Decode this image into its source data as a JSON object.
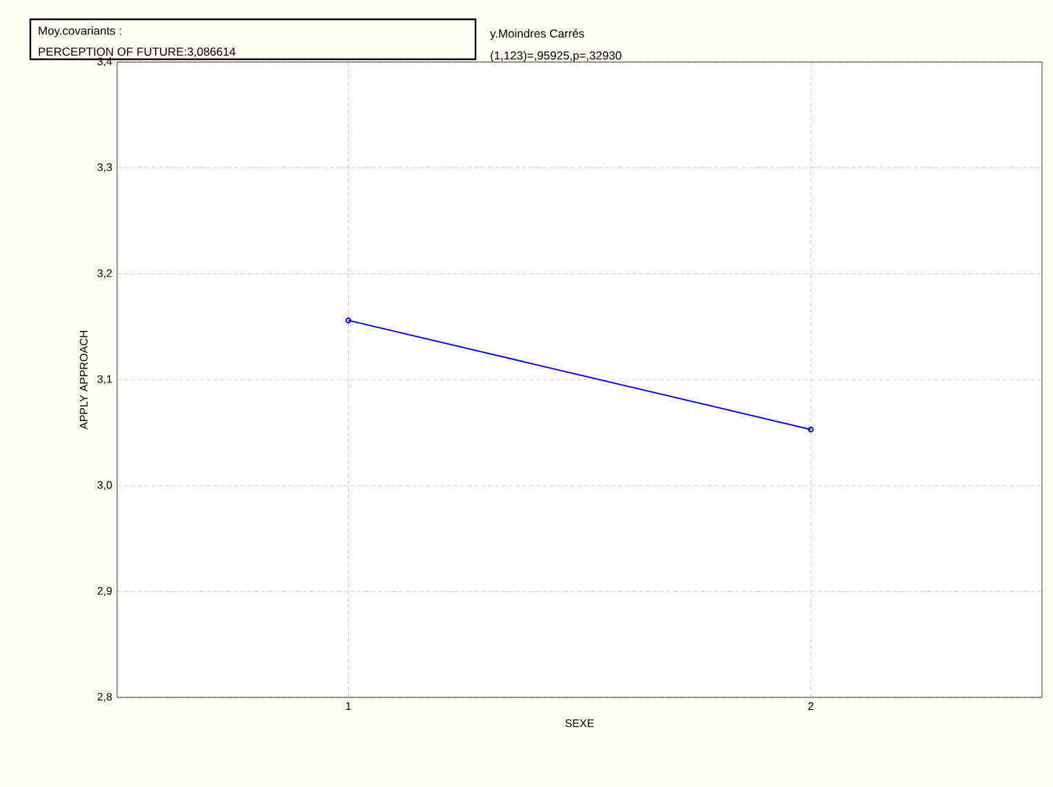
{
  "chart_data": {
    "type": "line",
    "title": "y.Moindres Carrés",
    "subtitle": "(1,123)=,95925,p=,32930",
    "annotations": [
      "Moy.covariants :",
      "PERCEPTION OF FUTURE:3,086614"
    ],
    "xlabel": "SEXE",
    "ylabel": "APPLY APPROACH",
    "x": [
      1,
      2
    ],
    "series": [
      {
        "color": "#0000ff",
        "values": [
          3.156,
          3.053
        ]
      }
    ],
    "xlim": [
      0.5,
      2.5
    ],
    "xticks": [
      1,
      2
    ],
    "ylim": [
      2.8,
      3.4
    ],
    "yticks": [
      {
        "value": 2.8,
        "label": "2,8"
      },
      {
        "value": 2.9,
        "label": "2,9"
      },
      {
        "value": 3.0,
        "label": "3,0"
      },
      {
        "value": 3.1,
        "label": "3,1"
      },
      {
        "value": 3.2,
        "label": "3,2"
      },
      {
        "value": 3.3,
        "label": "3,3"
      },
      {
        "value": 3.4,
        "label": "3,4"
      }
    ],
    "grid": true,
    "marker": "circle",
    "line_style": "solid"
  }
}
